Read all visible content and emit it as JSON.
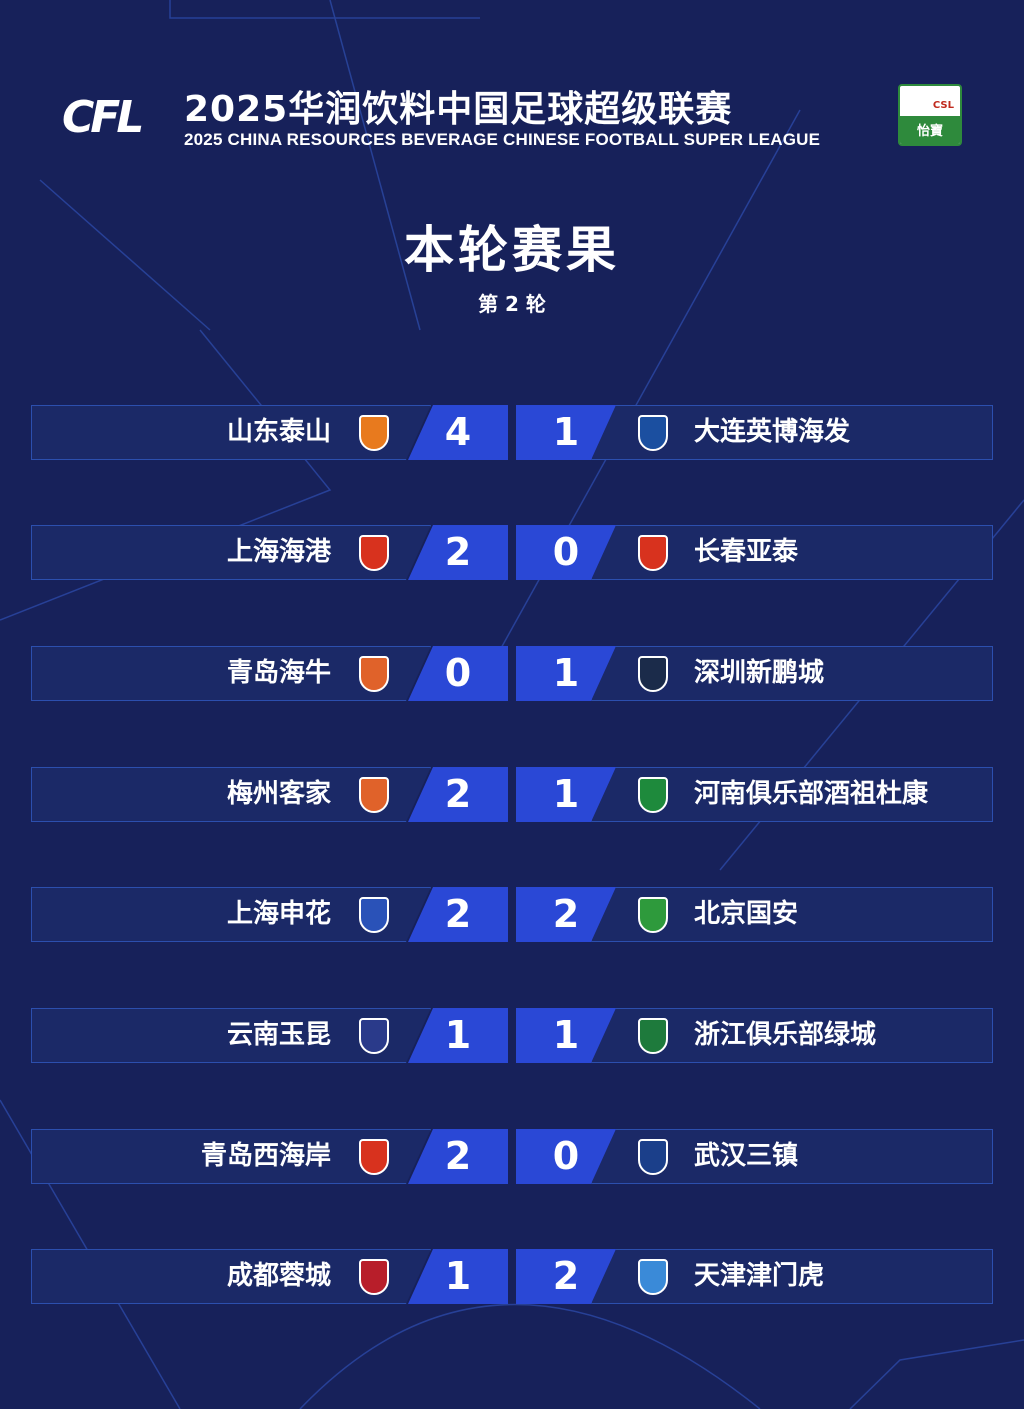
{
  "header": {
    "logo_text": "CFL",
    "title_cn": "2025华润饮料中国足球超级联赛",
    "title_en": "2025 CHINA RESOURCES BEVERAGE CHINESE FOOTBALL SUPER LEAGUE",
    "sponsor_top": "CSL",
    "sponsor_bottom": "怡寶"
  },
  "main_title": "本轮赛果",
  "round": "第 2 轮",
  "matches": [
    {
      "home": "山东泰山",
      "home_score": "4",
      "away_score": "1",
      "away": "大连英博海发",
      "home_color": "#e87a1e",
      "away_color": "#1b4fa0"
    },
    {
      "home": "上海海港",
      "home_score": "2",
      "away_score": "0",
      "away": "长春亚泰",
      "home_color": "#d8321e",
      "away_color": "#d8321e"
    },
    {
      "home": "青岛海牛",
      "home_score": "0",
      "away_score": "1",
      "away": "深圳新鹏城",
      "home_color": "#e0622a",
      "away_color": "#1b2b4a"
    },
    {
      "home": "梅州客家",
      "home_score": "2",
      "away_score": "1",
      "away": "河南俱乐部酒祖杜康",
      "home_color": "#e0622a",
      "away_color": "#1e8a3c"
    },
    {
      "home": "上海申花",
      "home_score": "2",
      "away_score": "2",
      "away": "北京国安",
      "home_color": "#2a52b8",
      "away_color": "#2e9a3c"
    },
    {
      "home": "云南玉昆",
      "home_score": "1",
      "away_score": "1",
      "away": "浙江俱乐部绿城",
      "home_color": "#2a3a8a",
      "away_color": "#1e7a3c"
    },
    {
      "home": "青岛西海岸",
      "home_score": "2",
      "away_score": "0",
      "away": "武汉三镇",
      "home_color": "#d8321e",
      "away_color": "#1b3f8a"
    },
    {
      "home": "成都蓉城",
      "home_score": "1",
      "away_score": "2",
      "away": "天津津门虎",
      "home_color": "#b81e2a",
      "away_color": "#3a8ad8"
    }
  ]
}
